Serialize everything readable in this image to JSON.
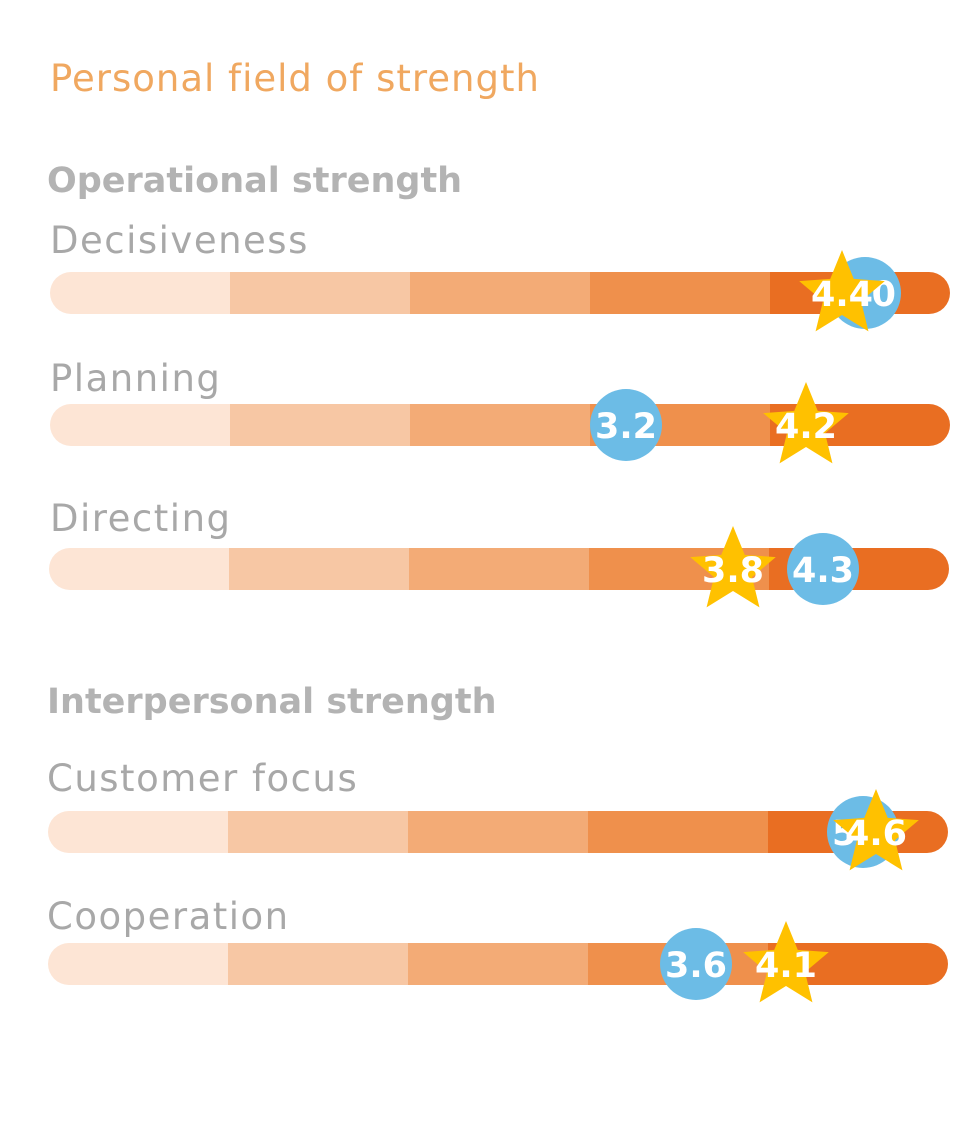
{
  "chart_data": {
    "type": "bar",
    "title": "Personal field of strength",
    "scale": [
      0,
      5
    ],
    "band_colors": [
      "#fde5d5",
      "#f7c7a4",
      "#f3ab76",
      "#ef904c",
      "#e96e22"
    ],
    "star_color": "#ffc100",
    "circle_color": "#6cbce6",
    "groups": [
      {
        "name": "Operational strength",
        "rows": [
          {
            "label": "Decisiveness",
            "star": 4.4,
            "circle": 5.0
          },
          {
            "label": "Planning",
            "star": 4.2,
            "circle": 3.2
          },
          {
            "label": "Directing",
            "star": 3.8,
            "circle": 4.3
          }
        ]
      },
      {
        "name": "Interpersonal strength",
        "rows": [
          {
            "label": "Customer focus",
            "star": 4.6,
            "circle": 5.0
          },
          {
            "label": "Cooperation",
            "star": 4.1,
            "circle": 3.6
          }
        ]
      }
    ]
  }
}
